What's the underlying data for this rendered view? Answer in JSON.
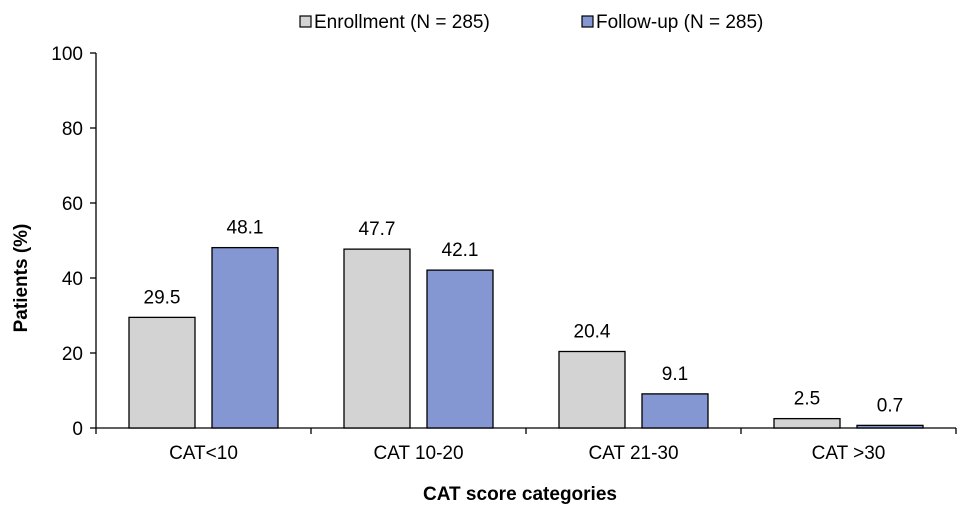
{
  "chart_data": {
    "type": "bar",
    "title": "",
    "xlabel": "CAT score categories",
    "ylabel": "Patients (%)",
    "categories": [
      "CAT<10",
      "CAT 10-20",
      "CAT 21-30",
      "CAT >30"
    ],
    "series": [
      {
        "name": "Enrollment (N = 285)",
        "values": [
          29.5,
          47.7,
          20.4,
          2.5
        ],
        "color": "#d3d3d3"
      },
      {
        "name": "Follow-up (N = 285)",
        "values": [
          48.1,
          42.1,
          9.1,
          0.7
        ],
        "color": "#8497d2"
      }
    ],
    "ylim": [
      0,
      100
    ],
    "yticks": [
      0,
      20,
      40,
      60,
      80,
      100
    ],
    "grid": false,
    "legend_position": "top-center",
    "data_labels": true
  }
}
